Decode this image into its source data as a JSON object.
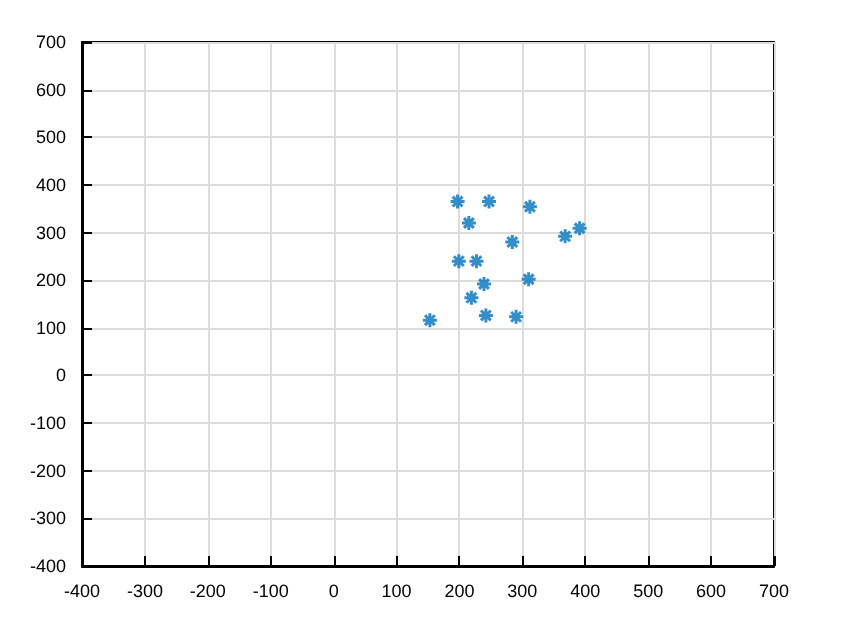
{
  "chart_data": {
    "type": "scatter",
    "marker": "cross",
    "grid": true,
    "x": [
      197,
      247,
      312,
      215,
      284,
      368,
      391,
      199,
      227,
      239,
      310,
      219,
      242,
      290,
      153
    ],
    "values": [
      365,
      365,
      354,
      320,
      280,
      292,
      309,
      240,
      240,
      192,
      202,
      163,
      126,
      123,
      116
    ],
    "color": "#0072bd",
    "xlim": [
      -400,
      700
    ],
    "xticks": [
      -400,
      -300,
      -200,
      -100,
      0,
      100,
      200,
      300,
      400,
      500,
      600,
      700
    ],
    "ylim": [
      -400,
      700
    ],
    "yticks": [
      -400,
      -300,
      -200,
      -100,
      0,
      100,
      200,
      300,
      400,
      500,
      600,
      700
    ]
  }
}
